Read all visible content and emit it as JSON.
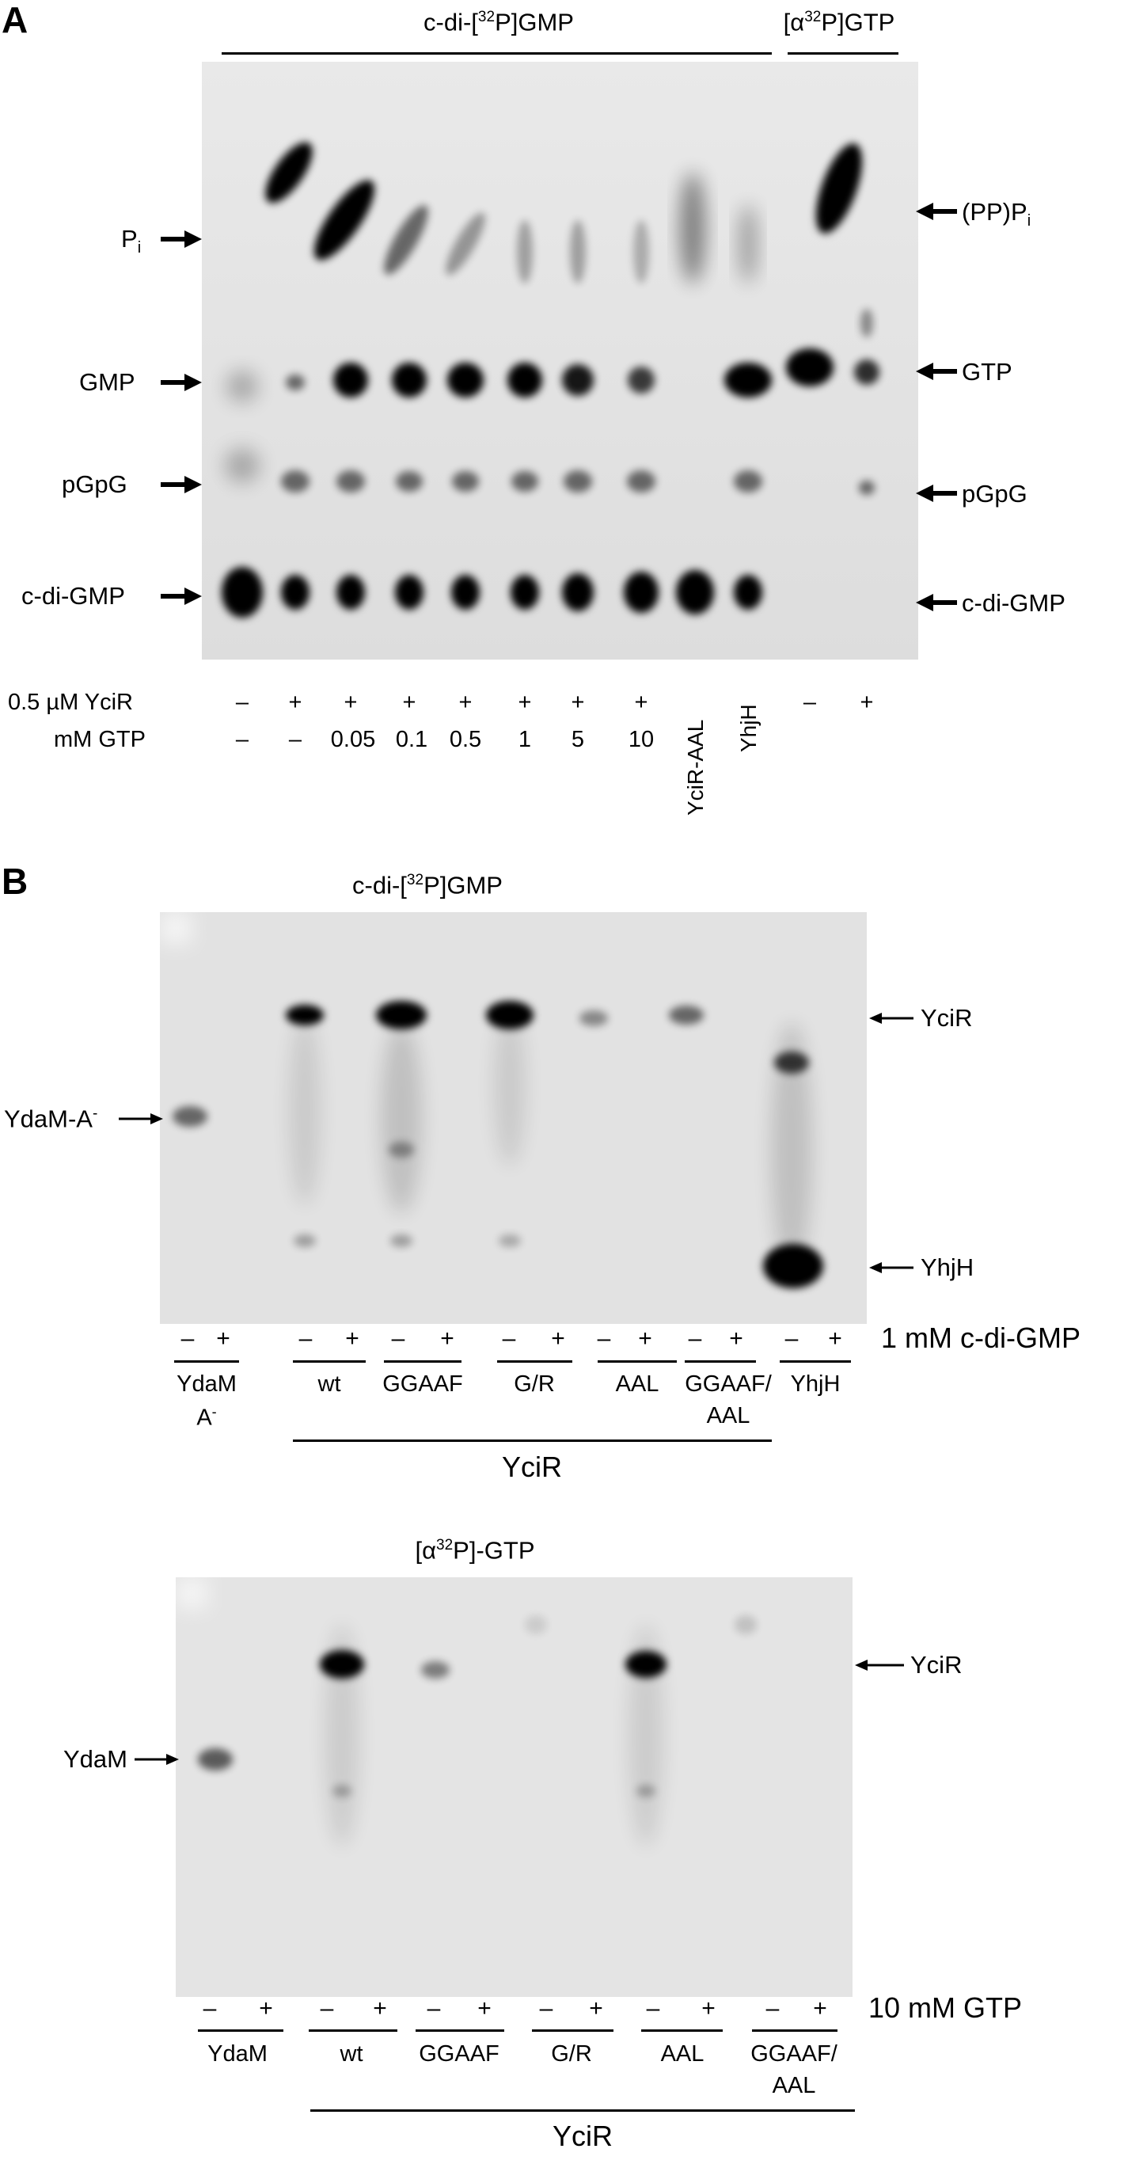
{
  "panelA": {
    "letter": "A",
    "header_left": {
      "pre": "c-di-[",
      "sup": "32",
      "post": "P]GMP"
    },
    "header_right": {
      "pre": "[α",
      "sup": "32",
      "post": "P]GTP"
    },
    "left_labels": [
      {
        "main": "P",
        "sub": "i"
      },
      {
        "main": "GMP",
        "sub": ""
      },
      {
        "main": "pGpG",
        "sub": ""
      },
      {
        "main": "c-di-GMP",
        "sub": ""
      }
    ],
    "right_labels": [
      {
        "main": "(PP)P",
        "sub": "i"
      },
      {
        "main": "GTP",
        "sub": ""
      },
      {
        "main": "pGpG",
        "sub": ""
      },
      {
        "main": "c-di-GMP",
        "sub": ""
      }
    ],
    "row1_label": "0.5 µM YciR",
    "row1": [
      "–",
      "+",
      "+",
      "+",
      "+",
      "+",
      "+",
      "+",
      "–",
      "+"
    ],
    "row2_label": "mM GTP",
    "row2": [
      "–",
      "–",
      "0.05",
      "0.1",
      "0.5",
      "1",
      "5",
      "10"
    ],
    "vertical_labels": [
      "YciR-AAL",
      "YhjH"
    ]
  },
  "panelB": {
    "letter": "B",
    "top": {
      "header": {
        "pre": "c-di-[",
        "sup": "32",
        "post": "P]GMP"
      },
      "left_label": {
        "main": "YdaM-A",
        "sup": "-"
      },
      "right_labels": [
        "YciR",
        "YhjH"
      ],
      "pm_row": [
        "–",
        "+",
        "–",
        "+",
        "–",
        "+",
        "–",
        "+",
        "–",
        "+",
        "–",
        "+",
        "–",
        "+"
      ],
      "condition": "1 mM c-di-GMP",
      "groups": [
        "YdaM",
        "wt",
        "GGAAF",
        "G/R",
        "AAL",
        "GGAAF/",
        "YhjH"
      ],
      "groups_line2": [
        "A",
        "AAL"
      ],
      "group_sup": "-",
      "bracket": "YciR"
    },
    "bottom": {
      "header": {
        "pre": "[α",
        "sup": "32",
        "post": "P]-GTP"
      },
      "left_label": "YdaM",
      "right_label": "YciR",
      "pm_row": [
        "–",
        "+",
        "–",
        "+",
        "–",
        "+",
        "–",
        "+",
        "–",
        "+",
        "–",
        "+"
      ],
      "condition": "10 mM GTP",
      "groups": [
        "YdaM",
        "wt",
        "GGAAF",
        "G/R",
        "AAL",
        "GGAAF/"
      ],
      "groups_line2": "AAL",
      "bracket": "YciR"
    }
  }
}
